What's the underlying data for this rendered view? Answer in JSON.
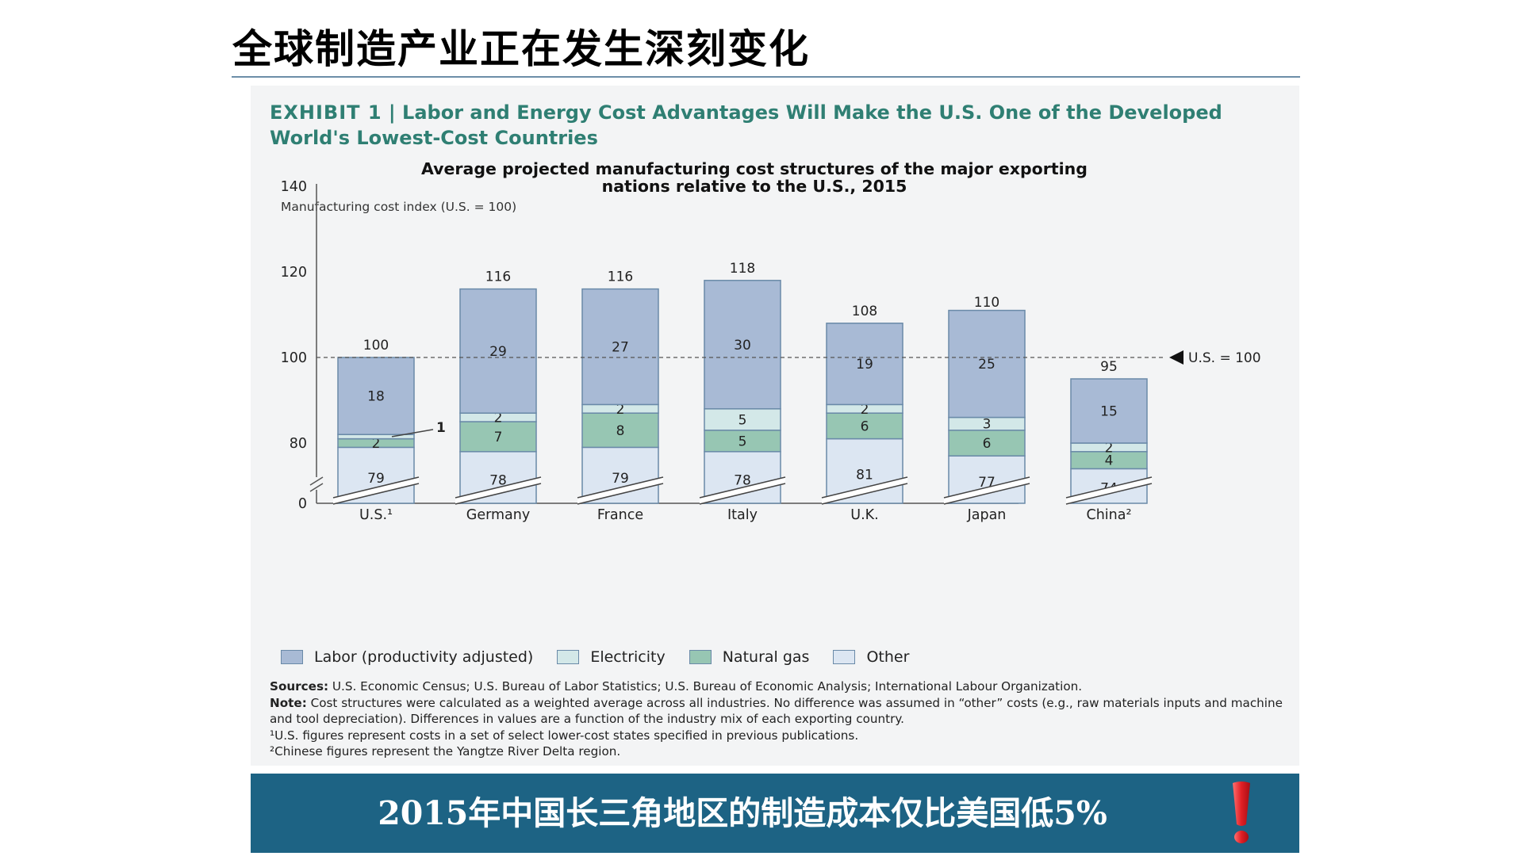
{
  "slide": {
    "title": "全球制造产业正在发生深刻变化",
    "banner_text": "2015年中国长三角地区的制造成本仅比美国低5%"
  },
  "exhibit": {
    "label": "EXHIBIT 1",
    "title": "Labor and Energy Cost Advantages Will Make the U.S. One of the Developed World's Lowest-Cost Countries"
  },
  "chart_data": {
    "type": "bar",
    "stacked": true,
    "title": "Average projected manufacturing cost structures of the major exporting nations relative to the U.S., 2015",
    "ylabel": "Manufacturing cost index (U.S. = 100)",
    "xlabel": "",
    "ylim": [
      0,
      140
    ],
    "axis_break": true,
    "yticks": [
      0,
      80,
      100,
      120,
      140
    ],
    "categories": [
      "U.S.¹",
      "Germany",
      "France",
      "Italy",
      "U.K.",
      "Japan",
      "China²"
    ],
    "series": [
      {
        "name": "Other",
        "values": [
          79,
          78,
          79,
          78,
          81,
          77,
          74
        ]
      },
      {
        "name": "Natural gas",
        "values": [
          2,
          7,
          8,
          5,
          6,
          6,
          4
        ]
      },
      {
        "name": "Electricity",
        "values": [
          1,
          2,
          2,
          5,
          2,
          3,
          2
        ]
      },
      {
        "name": "Labor (productivity adjusted)",
        "values": [
          18,
          29,
          27,
          30,
          19,
          25,
          15
        ]
      }
    ],
    "totals": [
      100,
      116,
      116,
      118,
      108,
      110,
      95
    ],
    "reference_line": {
      "value": 100,
      "label": "U.S. = 100"
    },
    "callouts": [
      {
        "category": "U.S.¹",
        "series": "Electricity",
        "label": "1"
      }
    ],
    "legend": [
      {
        "name": "Labor (productivity adjusted)",
        "color": "#a8bad5"
      },
      {
        "name": "Electricity",
        "color": "#d3e8e8"
      },
      {
        "name": "Natural gas",
        "color": "#97c6b3"
      },
      {
        "name": "Other",
        "color": "#dce6f2"
      }
    ],
    "legend_position": "bottom",
    "grid": false
  },
  "notes": {
    "sources_label": "Sources:",
    "sources_text": " U.S. Economic Census; U.S. Bureau of Labor Statistics; U.S. Bureau of Economic Analysis; International Labour Organization.",
    "note_label": "Note:",
    "note_text": " Cost structures were calculated as a weighted average across all industries. No difference was assumed in “other” costs (e.g., raw materials inputs and machine and tool depreciation). Differences in values are a function of the industry mix of each exporting country.",
    "footnote1": "¹U.S. figures represent costs in a set of select lower-cost states specified in previous publications.",
    "footnote2": "²Chinese figures represent the Yangtze River Delta region."
  }
}
